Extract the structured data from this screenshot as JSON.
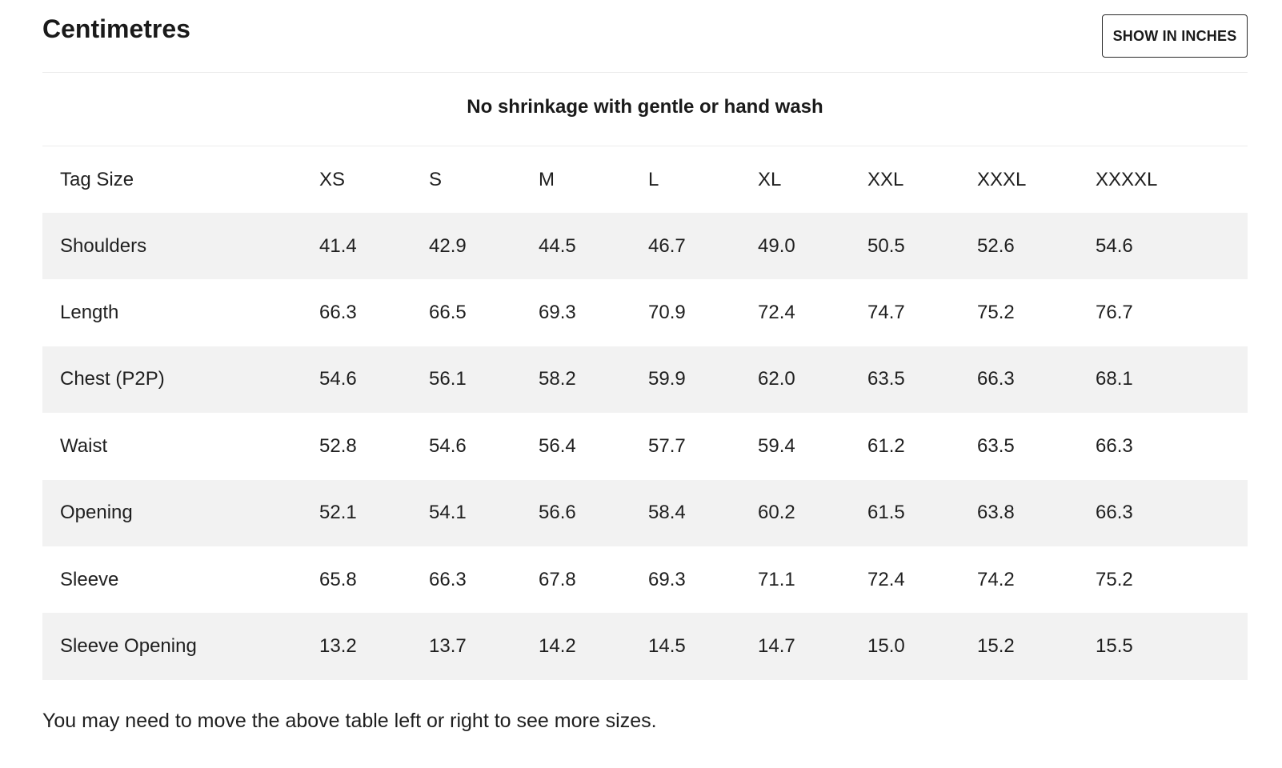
{
  "header": {
    "title": "Centimetres",
    "units_button": "SHOW IN INCHES"
  },
  "note": "No shrinkage with gentle or hand wash",
  "table": {
    "header": [
      "Tag Size",
      "XS",
      "S",
      "M",
      "L",
      "XL",
      "XXL",
      "XXXL",
      "XXXXL"
    ],
    "rows": [
      {
        "label": "Shoulders",
        "values": [
          "41.4",
          "42.9",
          "44.5",
          "46.7",
          "49.0",
          "50.5",
          "52.6",
          "54.6"
        ]
      },
      {
        "label": "Length",
        "values": [
          "66.3",
          "66.5",
          "69.3",
          "70.9",
          "72.4",
          "74.7",
          "75.2",
          "76.7"
        ]
      },
      {
        "label": "Chest (P2P)",
        "values": [
          "54.6",
          "56.1",
          "58.2",
          "59.9",
          "62.0",
          "63.5",
          "66.3",
          "68.1"
        ]
      },
      {
        "label": "Waist",
        "values": [
          "52.8",
          "54.6",
          "56.4",
          "57.7",
          "59.4",
          "61.2",
          "63.5",
          "66.3"
        ]
      },
      {
        "label": "Opening",
        "values": [
          "52.1",
          "54.1",
          "56.6",
          "58.4",
          "60.2",
          "61.5",
          "63.8",
          "66.3"
        ]
      },
      {
        "label": "Sleeve",
        "values": [
          "65.8",
          "66.3",
          "67.8",
          "69.3",
          "71.1",
          "72.4",
          "74.2",
          "75.2"
        ]
      },
      {
        "label": "Sleeve Opening",
        "values": [
          "13.2",
          "13.7",
          "14.2",
          "14.5",
          "14.7",
          "15.0",
          "15.2",
          "15.5"
        ]
      }
    ]
  },
  "footnote": "You may need to move the above table left or right to see more sizes.",
  "colors": {
    "text": "#1a1a1a",
    "row_stripe": "#f2f2f2",
    "divider": "#ececec",
    "button_border": "#2a2a2a"
  }
}
